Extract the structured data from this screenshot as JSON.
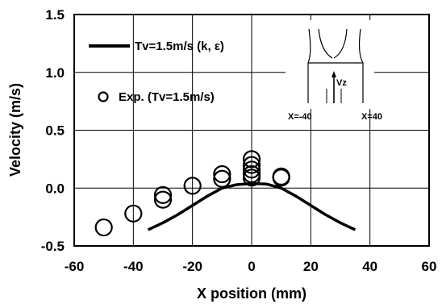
{
  "chart_data": {
    "type": "line",
    "xlabel": "X position (mm)",
    "ylabel": "Velocity (m/s)",
    "xlim": [
      -60,
      60
    ],
    "ylim": [
      -0.5,
      1.5
    ],
    "x_ticks": [
      "-60",
      "-40",
      "-20",
      "0",
      "20",
      "40",
      "60"
    ],
    "y_ticks": [
      "-0.5",
      "0.0",
      "0.5",
      "1.0",
      "1.5"
    ],
    "grid": true,
    "legend_placement": "top-left",
    "series": [
      {
        "name": "Tv=1.5m/s (k, ε)",
        "kind": "line",
        "color": "#000000",
        "x": [
          -35,
          -30,
          -25,
          -20,
          -15,
          -10,
          -5,
          0,
          5,
          10,
          15,
          20,
          25,
          30,
          35
        ],
        "y": [
          -0.36,
          -0.3,
          -0.23,
          -0.15,
          -0.07,
          0.0,
          0.03,
          0.04,
          0.035,
          0.0,
          -0.07,
          -0.15,
          -0.23,
          -0.3,
          -0.36
        ]
      },
      {
        "name": "Exp. (Tv=1.5m/s)",
        "kind": "markers",
        "marker": "open-circle",
        "color": "#000000",
        "x": [
          -50,
          -40,
          -30,
          -30,
          -20,
          -10,
          -10,
          0,
          0,
          0,
          0,
          0,
          10,
          10
        ],
        "y": [
          -0.34,
          -0.22,
          -0.06,
          -0.1,
          0.02,
          0.12,
          0.08,
          0.25,
          0.2,
          0.16,
          0.12,
          0.09,
          0.1,
          0.09
        ]
      }
    ],
    "inset": {
      "label_vz": "Vz",
      "label_left": "X=-40",
      "label_right": "X=40"
    }
  }
}
